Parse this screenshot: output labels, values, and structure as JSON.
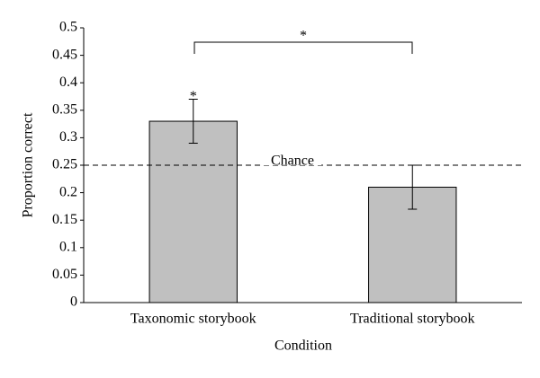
{
  "chart_data": {
    "type": "bar",
    "xlabel": "Condition",
    "ylabel": "Proportion correct",
    "categories": [
      "Taxonomic storybook",
      "Traditional storybook"
    ],
    "values": [
      0.33,
      0.21
    ],
    "errors": [
      0.04,
      0.04
    ],
    "bar_annotations": [
      "*",
      null
    ],
    "comparison_label": "*",
    "color": "#c0c0c0",
    "chance_line": {
      "value": 0.25,
      "label": "Chance"
    },
    "ylim": [
      0,
      0.5
    ],
    "yticks": [
      0,
      0.05,
      0.1,
      0.15,
      0.2,
      0.25,
      0.3,
      0.35,
      0.4,
      0.45,
      0.5
    ],
    "grid": false
  }
}
